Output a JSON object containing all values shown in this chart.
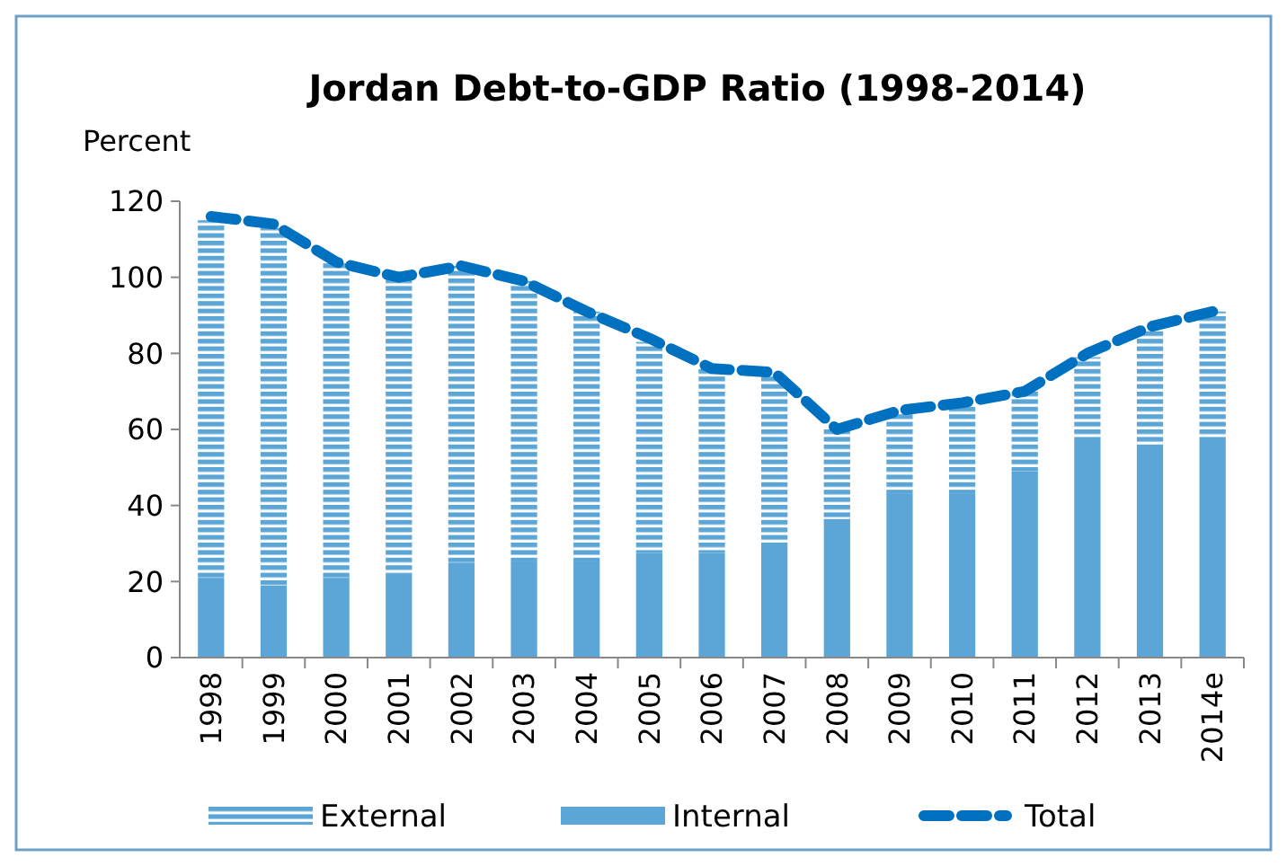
{
  "chart_data": {
    "type": "bar",
    "title": "Jordan Debt-to-GDP Ratio (1998-2014)",
    "ylabel": "Percent",
    "categories": [
      "1998",
      "1999",
      "2000",
      "2001",
      "2002",
      "2003",
      "2004",
      "2005",
      "2006",
      "2007",
      "2008",
      "2009",
      "2010",
      "2011",
      "2012",
      "2013",
      "2014e"
    ],
    "stacked": true,
    "series": [
      {
        "name": "Internal",
        "color": "#5ba6d6",
        "values": [
          21,
          19,
          21,
          22,
          25,
          25.5,
          25.5,
          27.5,
          27.5,
          30,
          36.5,
          43,
          43,
          49,
          58,
          56,
          58
        ]
      },
      {
        "name": "External",
        "color": "#5ba6d6",
        "values": [
          94,
          94,
          83,
          78,
          78,
          73.5,
          65.5,
          55.5,
          48.5,
          44,
          23.5,
          21,
          23,
          21,
          21,
          30,
          33
        ]
      },
      {
        "name": "Total",
        "type": "line",
        "color": "#0070c0",
        "line_style": "dashed",
        "values": [
          116,
          114,
          104,
          100,
          103,
          99,
          91,
          84,
          76,
          75,
          60,
          65,
          67,
          70,
          80,
          87,
          91
        ]
      }
    ],
    "ylim": [
      0,
      120
    ],
    "yticks": [
      0,
      20,
      40,
      60,
      80,
      100,
      120
    ],
    "grid": false,
    "legend": "bottom",
    "marker": "none"
  }
}
